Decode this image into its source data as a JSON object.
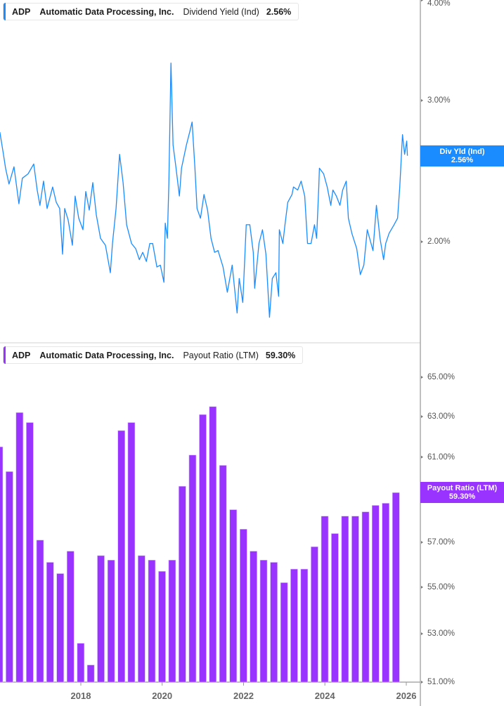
{
  "colors": {
    "dividend_yield": "#1a8cff",
    "payout_ratio": "#9933ff"
  },
  "top_legend": {
    "ticker": "ADP",
    "company": "Automatic Data Processing, Inc.",
    "metric": "Dividend Yield (Ind)",
    "value": "2.56%"
  },
  "bottom_legend": {
    "ticker": "ADP",
    "company": "Automatic Data Processing, Inc.",
    "metric": "Payout Ratio (LTM)",
    "value": "59.30%"
  },
  "top_flag": {
    "label": "Div Yld (Ind)",
    "value": "2.56%"
  },
  "bottom_flag": {
    "label": "Payout Ratio (LTM)",
    "value": "59.30%"
  },
  "chart_data": [
    {
      "type": "line",
      "name": "Dividend Yield (Ind)",
      "scale": "log",
      "ylim": [
        1.55,
        4.0
      ],
      "yticks": [
        {
          "v": 4.0,
          "label": "4.00%"
        },
        {
          "v": 3.0,
          "label": "3.00%"
        },
        {
          "v": 2.0,
          "label": "2.00%"
        }
      ],
      "grid": false,
      "points": [
        [
          "2016-01-05",
          2.74
        ],
        [
          "2016-02-06",
          2.57
        ],
        [
          "2016-02-25",
          2.47
        ],
        [
          "2016-03-27",
          2.36
        ],
        [
          "2016-05-11",
          2.48
        ],
        [
          "2016-06-24",
          2.23
        ],
        [
          "2016-07-25",
          2.4
        ],
        [
          "2016-09-14",
          2.43
        ],
        [
          "2016-11-04",
          2.5
        ],
        [
          "2016-12-05",
          2.32
        ],
        [
          "2016-12-30",
          2.22
        ],
        [
          "2017-01-31",
          2.38
        ],
        [
          "2017-03-04",
          2.2
        ],
        [
          "2017-04-23",
          2.34
        ],
        [
          "2017-05-25",
          2.24
        ],
        [
          "2017-06-25",
          2.2
        ],
        [
          "2017-07-21",
          1.93
        ],
        [
          "2017-08-09",
          2.2
        ],
        [
          "2017-09-09",
          2.13
        ],
        [
          "2017-10-17",
          1.98
        ],
        [
          "2017-11-11",
          2.28
        ],
        [
          "2017-12-13",
          2.14
        ],
        [
          "2018-01-20",
          2.07
        ],
        [
          "2018-02-14",
          2.31
        ],
        [
          "2018-03-18",
          2.19
        ],
        [
          "2018-04-18",
          2.37
        ],
        [
          "2018-05-20",
          2.16
        ],
        [
          "2018-06-27",
          2.02
        ],
        [
          "2018-08-10",
          1.98
        ],
        [
          "2018-09-23",
          1.83
        ],
        [
          "2018-10-12",
          1.99
        ],
        [
          "2018-11-13",
          2.2
        ],
        [
          "2018-12-15",
          2.57
        ],
        [
          "2019-01-15",
          2.37
        ],
        [
          "2019-02-16",
          2.1
        ],
        [
          "2019-04-01",
          1.99
        ],
        [
          "2019-05-09",
          1.96
        ],
        [
          "2019-06-10",
          1.9
        ],
        [
          "2019-07-11",
          1.94
        ],
        [
          "2019-08-12",
          1.89
        ],
        [
          "2019-09-12",
          1.99
        ],
        [
          "2019-10-08",
          1.99
        ],
        [
          "2019-11-15",
          1.86
        ],
        [
          "2019-12-16",
          1.87
        ],
        [
          "2020-01-17",
          1.78
        ],
        [
          "2020-01-29",
          2.11
        ],
        [
          "2020-02-17",
          2.02
        ],
        [
          "2020-03-01",
          2.36
        ],
        [
          "2020-03-20",
          3.34
        ],
        [
          "2020-04-08",
          2.64
        ],
        [
          "2020-05-03",
          2.48
        ],
        [
          "2020-06-04",
          2.28
        ],
        [
          "2020-06-23",
          2.47
        ],
        [
          "2020-08-06",
          2.64
        ],
        [
          "2020-09-07",
          2.75
        ],
        [
          "2020-09-26",
          2.82
        ],
        [
          "2020-10-21",
          2.47
        ],
        [
          "2020-11-09",
          2.2
        ],
        [
          "2020-12-10",
          2.14
        ],
        [
          "2021-01-11",
          2.29
        ],
        [
          "2021-02-12",
          2.19
        ],
        [
          "2021-03-15",
          2.02
        ],
        [
          "2021-04-16",
          1.94
        ],
        [
          "2021-05-17",
          1.95
        ],
        [
          "2021-07-01",
          1.86
        ],
        [
          "2021-08-08",
          1.73
        ],
        [
          "2021-09-21",
          1.87
        ],
        [
          "2021-11-04",
          1.63
        ],
        [
          "2021-11-23",
          1.8
        ],
        [
          "2021-12-25",
          1.68
        ],
        [
          "2022-01-25",
          2.1
        ],
        [
          "2022-02-26",
          2.1
        ],
        [
          "2022-03-29",
          1.94
        ],
        [
          "2022-04-11",
          1.75
        ],
        [
          "2022-05-19",
          1.99
        ],
        [
          "2022-06-20",
          2.07
        ],
        [
          "2022-07-21",
          1.93
        ],
        [
          "2022-08-22",
          1.61
        ],
        [
          "2022-09-16",
          1.8
        ],
        [
          "2022-10-18",
          1.83
        ],
        [
          "2022-11-12",
          1.71
        ],
        [
          "2022-11-18",
          2.07
        ],
        [
          "2022-12-20",
          1.99
        ],
        [
          "2023-01-08",
          2.1
        ],
        [
          "2023-02-02",
          2.24
        ],
        [
          "2023-03-12",
          2.29
        ],
        [
          "2023-03-25",
          2.34
        ],
        [
          "2023-05-02",
          2.32
        ],
        [
          "2023-06-02",
          2.38
        ],
        [
          "2023-07-04",
          2.28
        ],
        [
          "2023-07-29",
          1.99
        ],
        [
          "2023-08-30",
          1.99
        ],
        [
          "2023-09-30",
          2.1
        ],
        [
          "2023-10-19",
          2.02
        ],
        [
          "2023-11-07",
          2.34
        ],
        [
          "2023-11-13",
          2.47
        ],
        [
          "2023-12-21",
          2.43
        ],
        [
          "2024-01-22",
          2.34
        ],
        [
          "2024-02-23",
          2.22
        ],
        [
          "2024-03-13",
          2.32
        ],
        [
          "2024-04-13",
          2.28
        ],
        [
          "2024-05-15",
          2.22
        ],
        [
          "2024-06-09",
          2.32
        ],
        [
          "2024-07-11",
          2.38
        ],
        [
          "2024-07-30",
          2.14
        ],
        [
          "2024-08-30",
          2.05
        ],
        [
          "2024-10-13",
          1.96
        ],
        [
          "2024-11-14",
          1.82
        ],
        [
          "2024-12-16",
          1.87
        ],
        [
          "2025-01-16",
          2.07
        ],
        [
          "2025-03-08",
          1.95
        ],
        [
          "2025-04-08",
          2.22
        ],
        [
          "2025-05-10",
          2.02
        ],
        [
          "2025-06-11",
          1.9
        ],
        [
          "2025-06-30",
          1.99
        ],
        [
          "2025-07-31",
          2.05
        ],
        [
          "2025-09-13",
          2.1
        ],
        [
          "2025-10-15",
          2.14
        ],
        [
          "2025-11-03",
          2.34
        ],
        [
          "2025-11-28",
          2.72
        ],
        [
          "2025-12-17",
          2.57
        ],
        [
          "2026-01-05",
          2.67
        ],
        [
          "2026-01-11",
          2.56
        ]
      ]
    },
    {
      "type": "bar",
      "name": "Payout Ratio (LTM)",
      "scale": "log",
      "ylim": [
        51.0,
        66.0
      ],
      "yticks": [
        {
          "v": 65,
          "label": "65.00%"
        },
        {
          "v": 63,
          "label": "63.00%"
        },
        {
          "v": 61,
          "label": "61.00%"
        },
        {
          "v": 59,
          "label": "59.00%"
        },
        {
          "v": 57,
          "label": "57.00%"
        },
        {
          "v": 55,
          "label": "55.00%"
        },
        {
          "v": 53,
          "label": "53.00%"
        },
        {
          "v": 51,
          "label": "51.00%"
        }
      ],
      "grid": false,
      "categories": [
        "2015-12-31",
        "2016-03-31",
        "2016-06-30",
        "2016-09-30",
        "2016-12-31",
        "2017-03-31",
        "2017-06-30",
        "2017-09-30",
        "2017-12-31",
        "2018-03-31",
        "2018-06-30",
        "2018-09-30",
        "2018-12-31",
        "2019-03-31",
        "2019-06-30",
        "2019-09-30",
        "2019-12-31",
        "2020-03-31",
        "2020-06-30",
        "2020-09-30",
        "2020-12-31",
        "2021-03-31",
        "2021-06-30",
        "2021-09-30",
        "2021-12-31",
        "2022-03-31",
        "2022-06-30",
        "2022-09-30",
        "2022-12-31",
        "2023-03-31",
        "2023-06-30",
        "2023-09-30",
        "2023-12-31",
        "2024-03-31",
        "2024-06-30",
        "2024-09-30",
        "2024-12-31",
        "2025-03-31",
        "2025-06-30",
        "2025-09-30"
      ],
      "values": [
        61.5,
        60.3,
        63.2,
        62.7,
        57.1,
        56.1,
        55.6,
        56.6,
        52.6,
        51.7,
        56.4,
        56.2,
        62.3,
        62.7,
        56.4,
        56.2,
        55.7,
        56.2,
        59.6,
        61.1,
        63.1,
        63.5,
        60.6,
        58.5,
        57.6,
        56.6,
        56.2,
        56.1,
        55.2,
        55.8,
        55.8,
        56.8,
        58.2,
        57.4,
        58.2,
        58.2,
        58.4,
        58.7,
        58.8,
        59.3
      ]
    }
  ],
  "x_axis": {
    "ticks": [
      {
        "date": "2018-01-01",
        "label": "2018"
      },
      {
        "date": "2020-01-01",
        "label": "2020"
      },
      {
        "date": "2022-01-01",
        "label": "2022"
      },
      {
        "date": "2024-01-01",
        "label": "2024"
      },
      {
        "date": "2026-01-01",
        "label": "2026"
      }
    ]
  }
}
